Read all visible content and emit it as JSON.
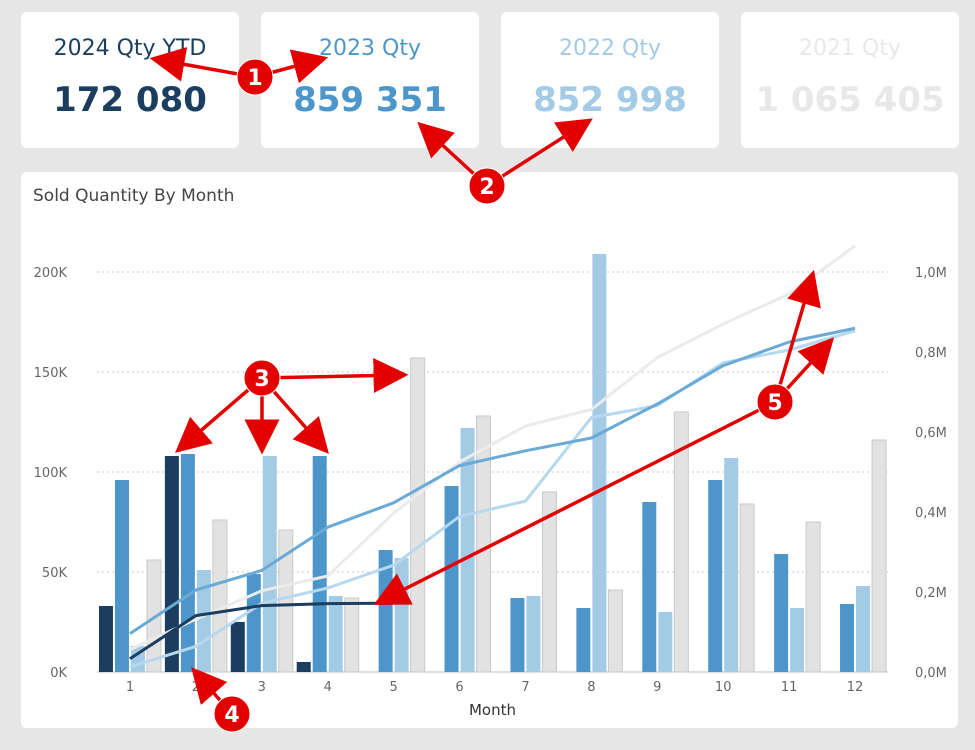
{
  "kpis": [
    {
      "title": "2024 Qty YTD",
      "value": "172 080",
      "color": "#1b3d5e"
    },
    {
      "title": "2023 Qty",
      "value": "859 351",
      "color": "#4d96ca"
    },
    {
      "title": "2022 Qty",
      "value": "852 998",
      "color": "#a3cbe6"
    },
    {
      "title": "2021 Qty",
      "value": "1 065 405",
      "color": "#e8e8e8"
    }
  ],
  "chart_data": {
    "type": "bar",
    "title": "Sold Quantity By Month",
    "xlabel": "Month",
    "ylabel": "",
    "categories": [
      "1",
      "2",
      "3",
      "4",
      "5",
      "6",
      "7",
      "8",
      "9",
      "10",
      "11",
      "12"
    ],
    "ylim": [
      0,
      220000
    ],
    "y2lim": [
      0,
      1100000
    ],
    "y_ticks": [
      "0K",
      "50K",
      "100K",
      "150K",
      "200K"
    ],
    "y2_ticks": [
      "0,0M",
      "0,2M",
      "0,4M",
      "0,6M",
      "0,8M",
      "1,0M"
    ],
    "grid": true,
    "series": [
      {
        "name": "2024",
        "color": "#1b3d5e",
        "values": [
          33000,
          108000,
          25000,
          5000,
          null,
          null,
          null,
          null,
          null,
          null,
          null,
          null
        ]
      },
      {
        "name": "2023",
        "color": "#4d96ca",
        "values": [
          96000,
          109000,
          49000,
          108000,
          61000,
          93000,
          37000,
          32000,
          85000,
          96000,
          59000,
          34000
        ]
      },
      {
        "name": "2022",
        "color": "#a3cbe6",
        "values": [
          13000,
          51000,
          108000,
          38000,
          57000,
          122000,
          38000,
          209000,
          30000,
          107000,
          32000,
          43000
        ]
      },
      {
        "name": "2021",
        "color": "#e2e2e2",
        "values": [
          56000,
          76000,
          71000,
          37000,
          157000,
          128000,
          90000,
          41000,
          130000,
          84000,
          75000,
          116000
        ]
      }
    ],
    "cumulative_series": [
      {
        "name": "2024",
        "color": "#1b3d5e",
        "values": [
          33000,
          141000,
          166000,
          171000,
          172080,
          null,
          null,
          null,
          null,
          null,
          null,
          null
        ]
      },
      {
        "name": "2023",
        "color": "#6aaad6",
        "values": [
          96000,
          205000,
          254000,
          362000,
          423000,
          516000,
          553000,
          585000,
          670000,
          766000,
          825000,
          859351
        ]
      },
      {
        "name": "2022",
        "color": "#b7d8ee",
        "values": [
          13000,
          64000,
          172000,
          210000,
          267000,
          389000,
          427000,
          636000,
          666000,
          773000,
          805000,
          852998
        ]
      },
      {
        "name": "2021",
        "color": "#ebebeb",
        "values": [
          56000,
          132000,
          203000,
          240000,
          397000,
          525000,
          615000,
          656000,
          786000,
          870000,
          945000,
          1065405
        ]
      }
    ]
  },
  "annotations": [
    "1",
    "2",
    "3",
    "4",
    "5"
  ]
}
